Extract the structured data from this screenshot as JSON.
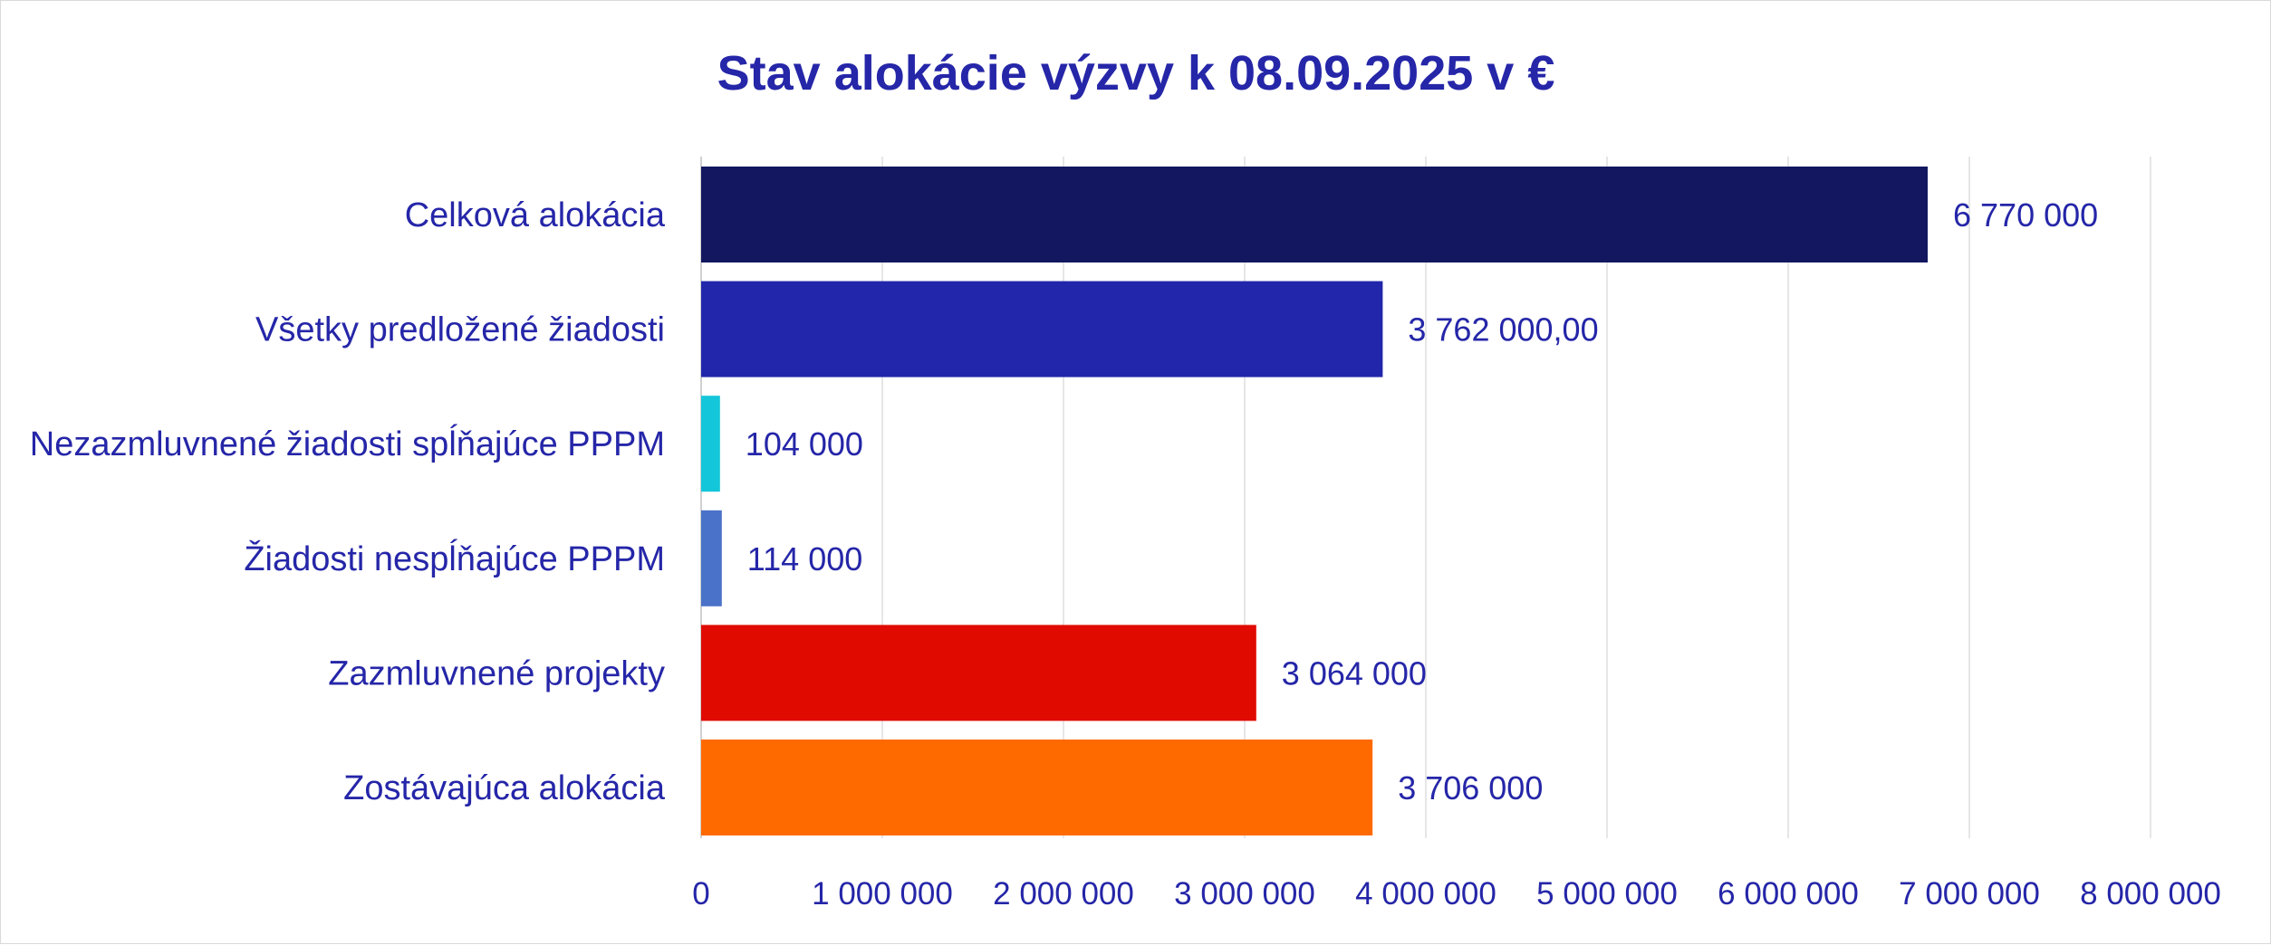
{
  "chart_data": {
    "type": "bar",
    "orientation": "horizontal",
    "title": "Stav alokácie výzvy k 08.09.2025 v €",
    "categories": [
      "Celková alokácia",
      "Všetky predložené žiadosti",
      "Nezazmluvnené žiadosti spĺňajúce PPPM",
      "Žiadosti nespĺňajúce PPPM",
      "Zazmluvnené projekty",
      "Zostávajúca alokácia"
    ],
    "values": [
      6770000,
      3762000,
      104000,
      114000,
      3064000,
      3706000
    ],
    "data_labels": [
      "6 770 000",
      "3 762 000,00",
      "104 000",
      "114 000",
      "3 064 000",
      "3 706 000"
    ],
    "colors": [
      "#12175f",
      "#2126ab",
      "#14c6d9",
      "#4a72c8",
      "#e00a00",
      "#ff6a00"
    ],
    "xlim": [
      0,
      8000000
    ],
    "x_ticks": [
      0,
      1000000,
      2000000,
      3000000,
      4000000,
      5000000,
      6000000,
      7000000,
      8000000
    ],
    "x_tick_labels": [
      "0",
      "1 000 000",
      "2 000 000",
      "3 000 000",
      "4 000 000",
      "5 000 000",
      "6 000 000",
      "7 000 000",
      "8 000 000"
    ],
    "xlabel": "",
    "ylabel": "",
    "grid": true,
    "legend": "none"
  }
}
